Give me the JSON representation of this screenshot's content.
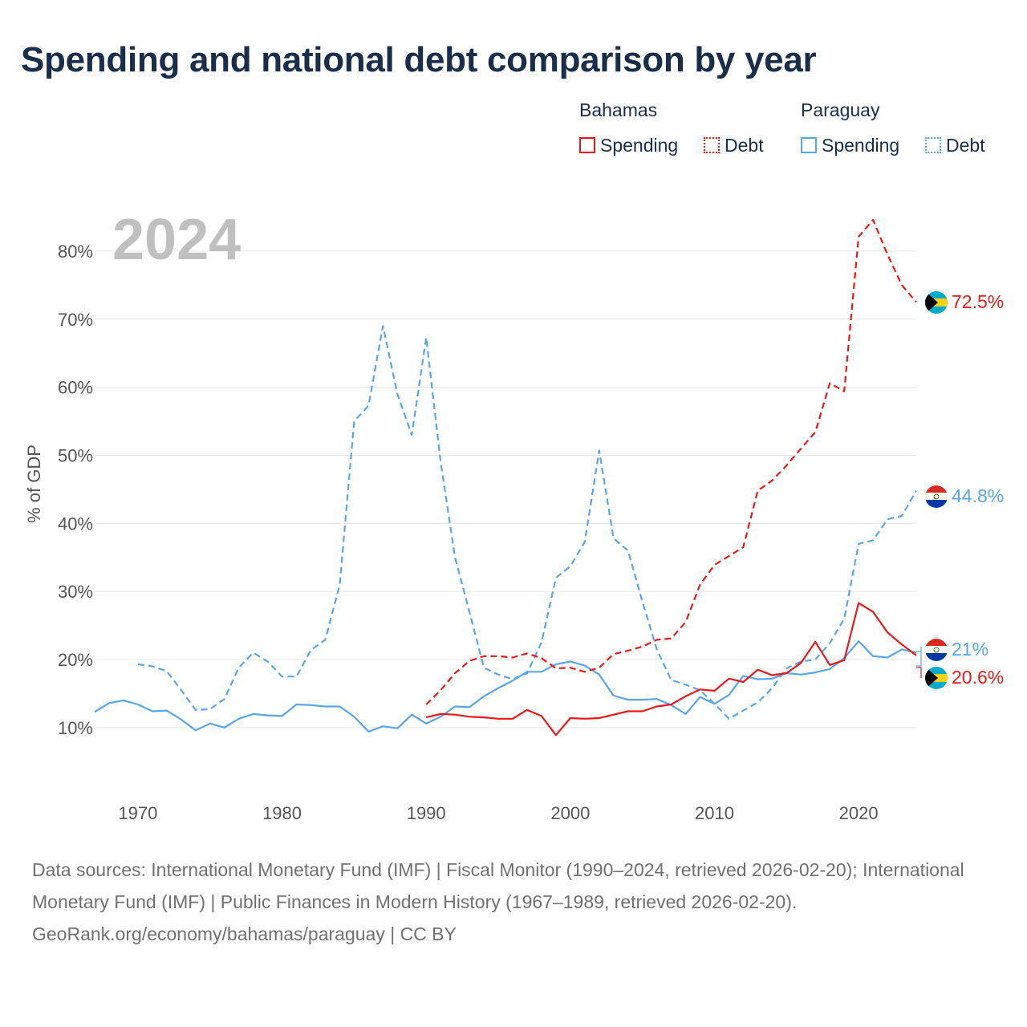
{
  "title": "Spending and national debt comparison by year",
  "current_year": "2024",
  "legend": {
    "groups": [
      {
        "country": "Bahamas",
        "color": "#e8191c",
        "items": [
          {
            "label": "Spending",
            "style": "solid"
          },
          {
            "label": "Debt",
            "style": "dotted"
          }
        ]
      },
      {
        "country": "Paraguay",
        "color": "#5aa5e6",
        "items": [
          {
            "label": "Spending",
            "style": "solid"
          },
          {
            "label": "Debt",
            "style": "dotted"
          }
        ]
      }
    ]
  },
  "end_labels": {
    "bahamas_debt": "72.5%",
    "paraguay_debt": "44.8%",
    "paraguay_spending": "21%",
    "bahamas_spending": "20.6%"
  },
  "footer": {
    "sources": "Data sources: International Monetary Fund (IMF) | Fiscal Monitor (1990–2024, retrieved 2026-02-20); International Monetary Fund (IMF) | Public Finances in Modern History (1967–1989, retrieved 2026-02-20).",
    "attribution": "GeoRank.org/economy/bahamas/paraguay | CC BY"
  },
  "chart_data": {
    "type": "line",
    "ylabel": "% of GDP",
    "xlabel": "",
    "xlim": [
      1967,
      2024
    ],
    "ylim": [
      3.5,
      86
    ],
    "x_ticks": [
      1970,
      1980,
      1990,
      2000,
      2010,
      2020
    ],
    "y_ticks": [
      10,
      20,
      30,
      40,
      50,
      60,
      70,
      80
    ],
    "y_tick_labels": [
      "10%",
      "20%",
      "30%",
      "40%",
      "50%",
      "60%",
      "70%",
      "80%"
    ],
    "series": [
      {
        "name": "Paraguay Debt",
        "country": "Paraguay",
        "metric": "Debt",
        "color": "#5aa5e6",
        "dash": true,
        "x": [
          1970,
          1971,
          1972,
          1973,
          1974,
          1975,
          1976,
          1977,
          1978,
          1979,
          1980,
          1981,
          1982,
          1983,
          1984,
          1985,
          1986,
          1987,
          1988,
          1989,
          1990,
          1991,
          1992,
          1993,
          1994,
          1995,
          1996,
          1997,
          1998,
          1999,
          2000,
          2001,
          2002,
          2003,
          2004,
          2005,
          2006,
          2007,
          2008,
          2009,
          2010,
          2011,
          2012,
          2013,
          2014,
          2015,
          2016,
          2017,
          2018,
          2019,
          2020,
          2021,
          2022,
          2023,
          2024
        ],
        "values": [
          19.3,
          19.0,
          18.3,
          15.5,
          12.6,
          12.7,
          14.2,
          18.8,
          21.0,
          19.7,
          17.5,
          17.5,
          21.4,
          22.9,
          31.0,
          55.0,
          57.3,
          69.0,
          59.0,
          53.0,
          67.3,
          49.0,
          35.0,
          27.0,
          18.8,
          17.8,
          17.1,
          18.0,
          22.5,
          32.0,
          33.7,
          37.3,
          50.7,
          37.8,
          36.0,
          28.5,
          21.5,
          17.0,
          16.3,
          15.5,
          13.5,
          11.3,
          12.5,
          13.7,
          15.8,
          18.7,
          19.7,
          20.0,
          22.4,
          26.0,
          37.0,
          37.5,
          40.6,
          41.1,
          44.8
        ]
      },
      {
        "name": "Paraguay Spending",
        "country": "Paraguay",
        "metric": "Spending",
        "color": "#5aa5e6",
        "dash": false,
        "x": [
          1967,
          1968,
          1969,
          1970,
          1971,
          1972,
          1973,
          1974,
          1975,
          1976,
          1977,
          1978,
          1979,
          1980,
          1981,
          1982,
          1983,
          1984,
          1985,
          1986,
          1987,
          1988,
          1989,
          1990,
          1991,
          1992,
          1993,
          1994,
          1995,
          1996,
          1997,
          1998,
          1999,
          2000,
          2001,
          2002,
          2003,
          2004,
          2005,
          2006,
          2007,
          2008,
          2009,
          2010,
          2011,
          2012,
          2013,
          2014,
          2015,
          2016,
          2017,
          2018,
          2019,
          2020,
          2021,
          2022,
          2023,
          2024
        ],
        "values": [
          12.3,
          13.6,
          14.0,
          13.4,
          12.4,
          12.5,
          11.2,
          9.6,
          10.6,
          10.0,
          11.3,
          12.0,
          11.8,
          11.7,
          13.4,
          13.3,
          13.1,
          13.1,
          11.6,
          9.4,
          10.2,
          9.9,
          11.9,
          10.6,
          11.6,
          13.1,
          13.0,
          14.6,
          15.8,
          16.9,
          18.2,
          18.2,
          19.3,
          19.7,
          19.1,
          17.8,
          14.7,
          14.1,
          14.1,
          14.2,
          13.3,
          12.0,
          14.5,
          13.5,
          14.8,
          17.6,
          17.1,
          17.2,
          18.0,
          17.8,
          18.1,
          18.6,
          20.2,
          22.7,
          20.5,
          20.3,
          21.5,
          21.0
        ]
      },
      {
        "name": "Bahamas Debt",
        "country": "Bahamas",
        "metric": "Debt",
        "color": "#e8191c",
        "dash": true,
        "x": [
          1990,
          1991,
          1992,
          1993,
          1994,
          1995,
          1996,
          1997,
          1998,
          1999,
          2000,
          2001,
          2002,
          2003,
          2004,
          2005,
          2006,
          2007,
          2008,
          2009,
          2010,
          2011,
          2012,
          2013,
          2014,
          2015,
          2016,
          2017,
          2018,
          2019,
          2020,
          2021,
          2022,
          2023,
          2024
        ],
        "values": [
          13.4,
          15.5,
          18.0,
          19.8,
          20.5,
          20.5,
          20.3,
          20.9,
          20.2,
          18.7,
          18.8,
          18.2,
          18.8,
          20.8,
          21.3,
          21.9,
          22.9,
          23.1,
          25.5,
          31.0,
          33.9,
          35.2,
          36.5,
          44.8,
          46.3,
          48.5,
          51.0,
          53.4,
          60.6,
          59.4,
          82.1,
          84.6,
          79.5,
          75.0,
          72.5
        ]
      },
      {
        "name": "Bahamas Spending",
        "country": "Bahamas",
        "metric": "Spending",
        "color": "#e8191c",
        "dash": false,
        "x": [
          1990,
          1991,
          1992,
          1993,
          1994,
          1995,
          1996,
          1997,
          1998,
          1999,
          2000,
          2001,
          2002,
          2003,
          2004,
          2005,
          2006,
          2007,
          2008,
          2009,
          2010,
          2011,
          2012,
          2013,
          2014,
          2015,
          2016,
          2017,
          2018,
          2019,
          2020,
          2021,
          2022,
          2023,
          2024
        ],
        "values": [
          11.5,
          12.0,
          11.9,
          11.6,
          11.5,
          11.3,
          11.3,
          12.6,
          11.7,
          8.9,
          11.4,
          11.3,
          11.4,
          11.9,
          12.4,
          12.4,
          13.1,
          13.4,
          14.6,
          15.6,
          15.4,
          17.2,
          16.7,
          18.5,
          17.7,
          18.0,
          19.5,
          22.6,
          19.2,
          19.9,
          28.3,
          27.0,
          24.0,
          22.2,
          20.6
        ]
      }
    ]
  }
}
